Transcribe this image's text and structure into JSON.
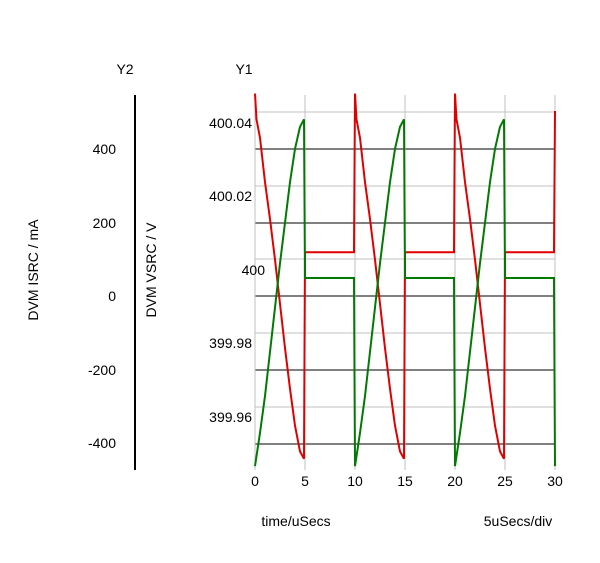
{
  "chart_data": {
    "type": "line",
    "axis_titles": {
      "y2_header": "Y2",
      "y1_header": "Y1"
    },
    "xlabel": "time/uSecs",
    "x_scale_note": "5uSecs/div",
    "y2_label": "DVM ISRC / mA",
    "y1_label": "DVM VSRC / V",
    "xlim": [
      0,
      30
    ],
    "y1lim": [
      399.95,
      400.05
    ],
    "y2lim": [
      -470,
      540
    ],
    "x_ticks": [
      "0",
      "5",
      "10",
      "15",
      "20",
      "25",
      "30"
    ],
    "y1_ticks": [
      "400.04",
      "400.02",
      "400",
      "399.98",
      "399.96"
    ],
    "y2_ticks": [
      "400",
      "200",
      "0",
      "-200",
      "-400"
    ],
    "grid": true,
    "colors": {
      "red": "#e00000",
      "green": "#007a00",
      "grid_major": "#000000",
      "grid_minor": "#c0c0c0"
    },
    "series": [
      {
        "color": "red",
        "axis": "y1",
        "x": [
          0,
          0.15,
          0.5,
          1,
          1.5,
          2,
          2.5,
          3,
          3.5,
          4,
          4.5,
          4.9,
          5,
          5.1,
          9.9,
          10,
          10.15,
          10.5,
          11,
          11.5,
          12,
          12.5,
          13,
          13.5,
          14,
          14.5,
          14.9,
          15,
          15.1,
          19.9,
          20,
          20.15,
          20.5,
          21,
          21.5,
          22,
          22.5,
          23,
          23.5,
          24,
          24.5,
          24.9,
          25,
          25.1,
          29.9,
          30,
          30.1
        ],
        "y": [
          400.05,
          400.043,
          400.038,
          400.026,
          400.016,
          400.005,
          399.993,
          399.981,
          399.97,
          399.96,
          399.953,
          399.951,
          400.007,
          400.007,
          400.007,
          400.05,
          400.043,
          400.038,
          400.026,
          400.016,
          400.005,
          399.993,
          399.981,
          399.97,
          399.96,
          399.953,
          399.951,
          400.007,
          400.007,
          400.007,
          400.05,
          400.043,
          400.038,
          400.026,
          400.016,
          400.005,
          399.993,
          399.981,
          399.97,
          399.96,
          399.953,
          399.951,
          400.007,
          400.007,
          400.007,
          400.045,
          400.045
        ]
      },
      {
        "color": "green",
        "axis": "y1",
        "x": [
          0,
          0.5,
          1,
          1.5,
          2,
          2.5,
          3,
          3.5,
          4,
          4.5,
          4.9,
          5,
          5.1,
          9.9,
          10,
          10.5,
          11,
          11.5,
          12,
          12.5,
          13,
          13.5,
          14,
          14.5,
          14.9,
          15,
          15.1,
          19.9,
          20,
          20.5,
          21,
          21.5,
          22,
          22.5,
          23,
          23.5,
          24,
          24.5,
          24.9,
          25,
          25.1,
          29.9,
          30
        ],
        "y": [
          399.949,
          399.958,
          399.968,
          399.98,
          399.992,
          400.004,
          400.015,
          400.026,
          400.035,
          400.041,
          400.043,
          400.0,
          400.0,
          400.0,
          399.949,
          399.958,
          399.968,
          399.98,
          399.992,
          400.004,
          400.015,
          400.026,
          400.035,
          400.041,
          400.043,
          400.0,
          400.0,
          400.0,
          399.949,
          399.958,
          399.968,
          399.98,
          399.992,
          400.004,
          400.015,
          400.026,
          400.035,
          400.041,
          400.043,
          400.0,
          400.0,
          400.0,
          399.949
        ]
      }
    ]
  }
}
